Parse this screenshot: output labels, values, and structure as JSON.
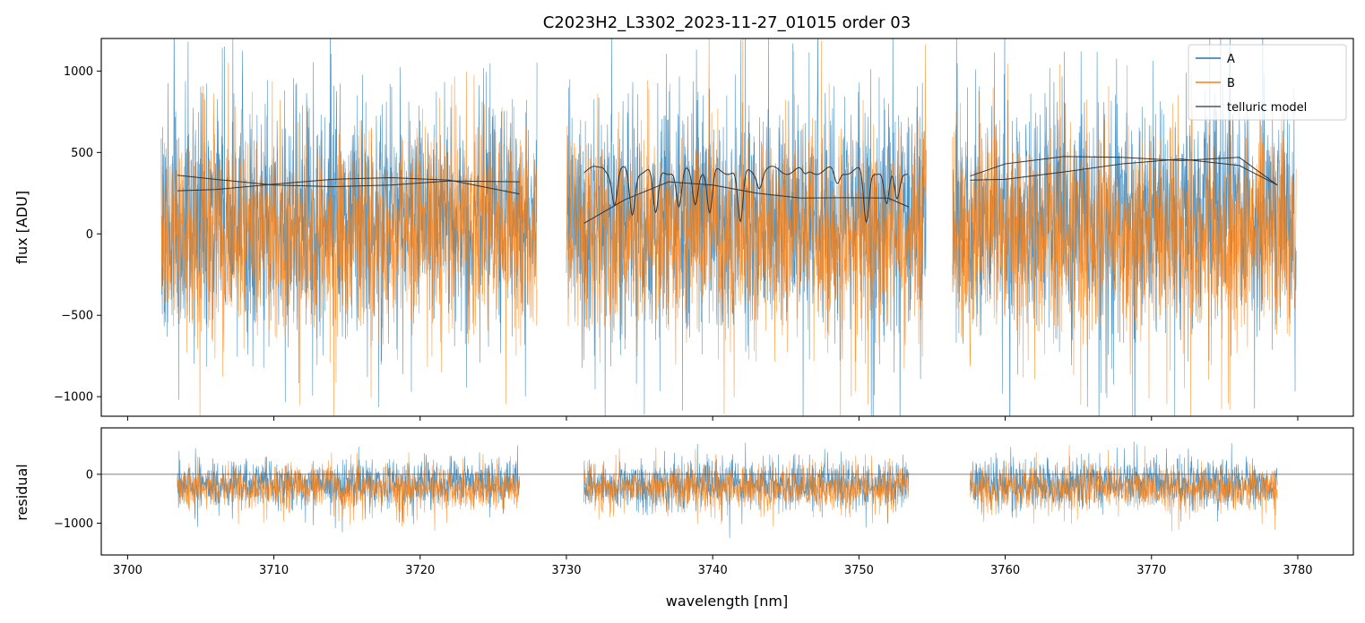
{
  "chart_data": [
    {
      "type": "line",
      "panel": "top",
      "title": "C2023H2_L3302_2023-11-27_01015  order 03",
      "ylabel": "flux [ADU]",
      "xlim": [
        3698.2,
        3783.8
      ],
      "ylim": [
        -1120,
        1200
      ],
      "xticks": [
        3700,
        3710,
        3720,
        3730,
        3740,
        3750,
        3760,
        3770,
        3780
      ],
      "yticks": [
        -1000,
        -500,
        0,
        500,
        1000
      ],
      "ytick_labels": [
        "−1000",
        "−500",
        "0",
        "500",
        "1000"
      ],
      "grid": false,
      "legend_position": "upper-right",
      "chips": [
        [
          3702.3,
          3728.0
        ],
        [
          3730.0,
          3754.6
        ],
        [
          3756.4,
          3779.9
        ]
      ],
      "series": [
        {
          "name": "A",
          "color": "#1f77b4",
          "style": "dense noise trace",
          "center": 100,
          "spread": 480,
          "drawn_range": [
            -1120,
            1200
          ]
        },
        {
          "name": "B",
          "color": "#ff7f0e",
          "style": "dense noise trace",
          "center": 0,
          "spread": 420,
          "drawn_range": [
            -1120,
            1200
          ]
        },
        {
          "name": "telluric model",
          "color": "#333333",
          "style": "thin line",
          "segments": [
            {
              "x": [
                3703.4,
                3706,
                3710,
                3714,
                3718,
                3722,
                3726.8
              ],
              "y": [
                265,
                272,
                305,
                335,
                345,
                330,
                245
              ]
            },
            {
              "x": [
                3703.4,
                3706,
                3710,
                3714,
                3718,
                3722,
                3726.8
              ],
              "y": [
                360,
                335,
                300,
                290,
                300,
                325,
                320
              ]
            },
            {
              "x": [
                3731.2,
                3734,
                3737,
                3740,
                3743,
                3746,
                3749,
                3752,
                3753.4
              ],
              "y": [
                65,
                210,
                320,
                300,
                250,
                220,
                222,
                220,
                165
              ]
            },
            {
              "x": [
                3757.6,
                3760,
                3764,
                3768,
                3772,
                3776,
                3778.6
              ],
              "y": [
                330,
                335,
                380,
                430,
                460,
                420,
                300
              ]
            },
            {
              "x": [
                3757.6,
                3760,
                3764,
                3768,
                3772,
                3776,
                3778.6
              ],
              "y": [
                355,
                430,
                475,
                470,
                450,
                470,
                300
              ]
            }
          ],
          "telluric_lines": [
            {
              "x": 3731.2,
              "y": 320,
              "note": "segment start"
            },
            {
              "x": 3732.5,
              "y": 410
            },
            {
              "x": 3733.3,
              "y": 185
            },
            {
              "x": 3734.5,
              "y": 120
            },
            {
              "x": 3736.1,
              "y": 110
            },
            {
              "x": 3737.7,
              "y": 150
            },
            {
              "x": 3738.8,
              "y": 200
            },
            {
              "x": 3739.8,
              "y": 110
            },
            {
              "x": 3741.9,
              "y": 55
            },
            {
              "x": 3743.2,
              "y": 300
            },
            {
              "x": 3746.3,
              "y": 350
            },
            {
              "x": 3748.5,
              "y": 300
            },
            {
              "x": 3750.5,
              "y": 60
            },
            {
              "x": 3751.9,
              "y": 170
            },
            {
              "x": 3752.6,
              "y": 210
            }
          ]
        }
      ]
    },
    {
      "type": "line",
      "panel": "bottom",
      "xlabel": "wavelength [nm]",
      "ylabel": "residual",
      "xlim": [
        3698.2,
        3783.8
      ],
      "ylim": [
        -1650,
        950
      ],
      "xticks": [
        3700,
        3710,
        3720,
        3730,
        3740,
        3750,
        3760,
        3770,
        3780
      ],
      "yticks": [
        -1000,
        0
      ],
      "ytick_labels": [
        "−1000",
        "0"
      ],
      "zero_line": true,
      "chips": [
        [
          3703.4,
          3726.8
        ],
        [
          3731.2,
          3753.4
        ],
        [
          3757.6,
          3778.6
        ]
      ],
      "series": [
        {
          "name": "A",
          "color": "#1f77b4",
          "center": -200,
          "spread": 320
        },
        {
          "name": "B",
          "color": "#ff7f0e",
          "center": -280,
          "spread": 300
        }
      ]
    }
  ]
}
